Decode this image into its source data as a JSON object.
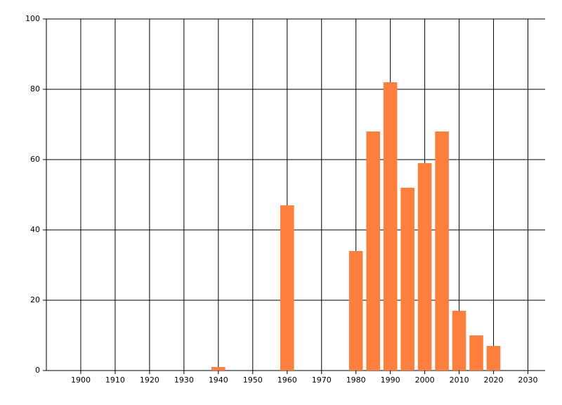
{
  "chart_data": {
    "type": "bar",
    "x": [
      1940,
      1960,
      1980,
      1985,
      1990,
      1995,
      2000,
      2005,
      2010,
      2015,
      2020
    ],
    "values": [
      1,
      47,
      34,
      68,
      82,
      52,
      59,
      68,
      17,
      10,
      7
    ],
    "color": "#ff7f3f",
    "xlim": [
      1890,
      2035
    ],
    "xticks": [
      1900,
      1910,
      1920,
      1930,
      1940,
      1950,
      1960,
      1970,
      1980,
      1990,
      2000,
      2010,
      2020,
      2030
    ],
    "ylim": [
      0,
      100
    ],
    "yticks": [
      0,
      20,
      40,
      60,
      80,
      100
    ],
    "grid": true
  }
}
